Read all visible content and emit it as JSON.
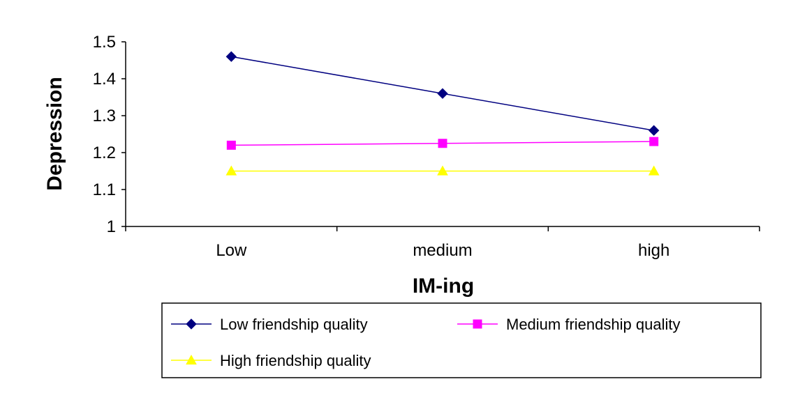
{
  "chart_data": {
    "type": "line",
    "categories": [
      "Low",
      "medium",
      "high"
    ],
    "series": [
      {
        "name": "Low friendship quality",
        "values": [
          1.46,
          1.36,
          1.26
        ],
        "color": "#000080",
        "marker": "diamond"
      },
      {
        "name": "Medium friendship quality",
        "values": [
          1.22,
          1.225,
          1.23
        ],
        "color": "#FF00FF",
        "marker": "square"
      },
      {
        "name": "High friendship quality",
        "values": [
          1.15,
          1.15,
          1.15
        ],
        "color": "#FFFF00",
        "marker": "triangle"
      }
    ],
    "xlabel": "IM-ing",
    "ylabel": "Depression",
    "ylim": [
      1,
      1.5
    ],
    "yticks": [
      "1",
      "1.1",
      "1.2",
      "1.3",
      "1.4",
      "1.5"
    ],
    "grid": false,
    "legend_position": "bottom"
  }
}
